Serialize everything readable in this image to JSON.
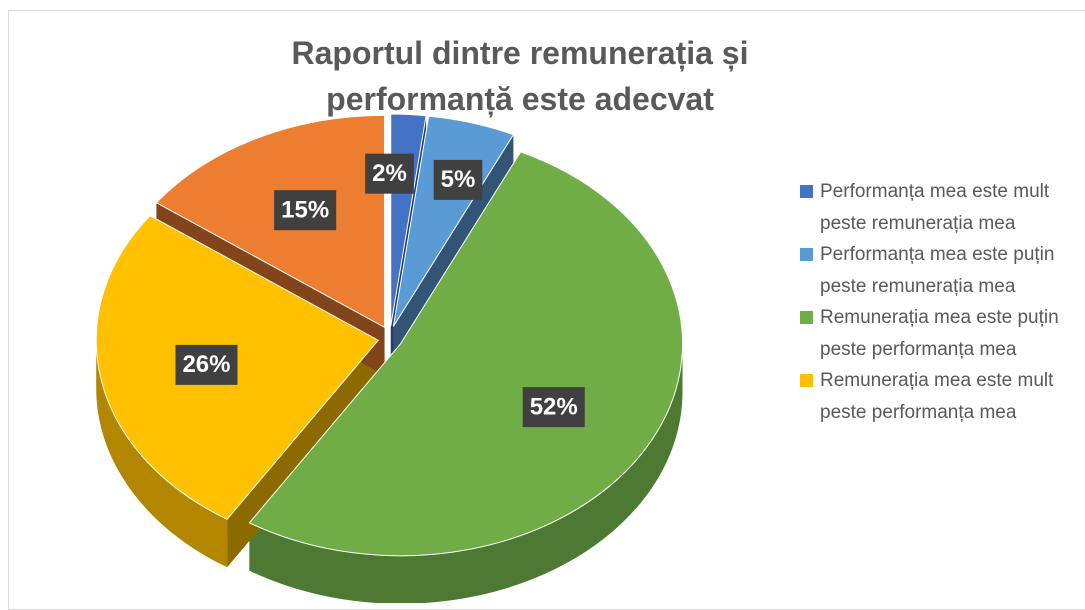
{
  "chart_data": {
    "type": "pie",
    "title": "Raportul dintre remunerația și performanță este adecvat",
    "categories": [
      "Performanța mea este mult peste remunerația mea",
      "Performanța mea este puțin peste remunerația mea",
      "Remunerația mea este puțin peste performanța mea",
      "Remunerația mea este mult peste performanța mea",
      null
    ],
    "values": [
      2,
      5,
      52,
      26,
      15
    ],
    "value_labels": [
      "2%",
      "5%",
      "52%",
      "26%",
      "15%"
    ],
    "colors": [
      "#4472c4",
      "#5b9bd5",
      "#70ad47",
      "#ffc000",
      "#ed7d31"
    ]
  }
}
